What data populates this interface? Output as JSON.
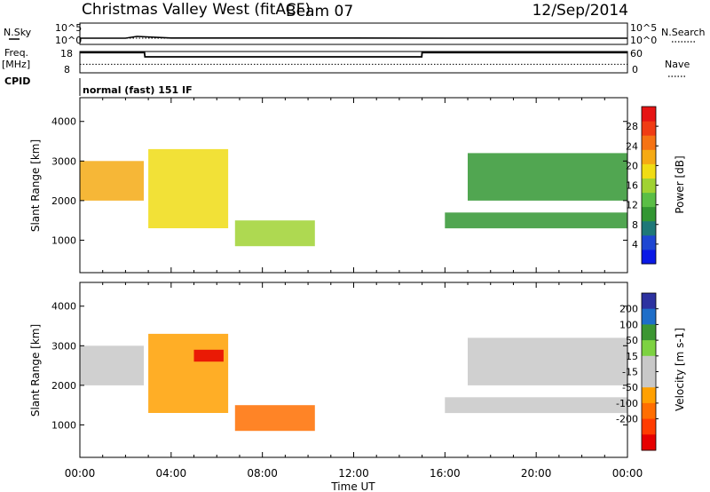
{
  "header": {
    "title": "Christmas Valley West (fitACF)",
    "beam": "Beam 07",
    "date": "12/Sep/2014"
  },
  "side_labels": {
    "nsky": "N.Sky",
    "freq_line1": "Freq.",
    "freq_line2": "[MHz]",
    "cpid": "CPID",
    "nsearch": "N.Search",
    "nave": "Nave"
  },
  "mode_label": "normal (fast) 151 IF",
  "colors": {
    "axis": "#000000",
    "power_scale": [
      "#0a19e6",
      "#1e46d2",
      "#1e7878",
      "#329632",
      "#5abe46",
      "#a0d232",
      "#f0dc14",
      "#f5aa14",
      "#f57314",
      "#f03c14",
      "#e61414"
    ],
    "velocity_scale": [
      "#2d32a0",
      "#1e6ec8",
      "#3c9632",
      "#7dd241",
      "#c8c8c8",
      "#c8c8c8",
      "#ffa000",
      "#ff6e00",
      "#ff3c00",
      "#e60000"
    ]
  },
  "chart_data": [
    {
      "type": "line",
      "name": "noise",
      "series": [
        {
          "name": "N.Sky",
          "x": [
            "00:00",
            "02:00",
            "02:30",
            "04:00",
            "08:00",
            "12:00",
            "16:00",
            "20:00",
            "24:00"
          ],
          "values": [
            0.5,
            0.5,
            1.5,
            0.6,
            0.6,
            0.6,
            0.5,
            0.5,
            0.5
          ]
        },
        {
          "name": "N.Search",
          "x": [
            "00:00",
            "24:00"
          ],
          "values": [
            0.5,
            0.5
          ]
        }
      ],
      "ylim": [
        "10^0",
        "10^5"
      ],
      "tick_labels_left": [
        "10^5",
        "10^0"
      ],
      "tick_labels_right": [
        "10^5",
        "10^0"
      ]
    },
    {
      "type": "line",
      "name": "frequency",
      "series": [
        {
          "name": "Freq.",
          "x": [
            "00:00",
            "02:50",
            "02:51",
            "14:59",
            "15:00",
            "24:00"
          ],
          "values": [
            17.5,
            17.5,
            15.5,
            15.5,
            17.5,
            17.5
          ]
        },
        {
          "name": "Nave",
          "x": [
            "00:00",
            "24:00"
          ],
          "values": [
            24,
            24
          ]
        }
      ],
      "yleft_ticks": [
        "18",
        "8"
      ],
      "yright_ticks": [
        "60",
        "0"
      ]
    },
    {
      "type": "heatmap",
      "name": "power",
      "xlabel": "",
      "ylabel": "Slant Range [km]",
      "x_ticks": [
        "00:00",
        "04:00",
        "08:00",
        "12:00",
        "16:00",
        "20:00",
        "00:00"
      ],
      "y_ticks": [
        1000,
        2000,
        3000,
        4000
      ],
      "ylim": [
        180,
        4600
      ],
      "colorbar": {
        "label": "Power [dB]",
        "ticks": [
          4,
          8,
          12,
          16,
          20,
          24,
          28
        ]
      },
      "regions": [
        {
          "t0": 0.0,
          "t1": 2.8,
          "r0": 2000,
          "r1": 3000,
          "value": 22
        },
        {
          "t0": 3.0,
          "t1": 6.5,
          "r0": 1300,
          "r1": 3300,
          "value": 18
        },
        {
          "t0": 6.8,
          "t1": 10.3,
          "r0": 850,
          "r1": 1500,
          "value": 14
        },
        {
          "t0": 16.0,
          "t1": 24.0,
          "r0": 1300,
          "r1": 1700,
          "value": 8
        },
        {
          "t0": 17.0,
          "t1": 24.0,
          "r0": 2000,
          "r1": 3200,
          "value": 10
        }
      ]
    },
    {
      "type": "heatmap",
      "name": "velocity",
      "xlabel": "Time UT",
      "ylabel": "Slant Range [km]",
      "x_ticks": [
        "00:00",
        "04:00",
        "08:00",
        "12:00",
        "16:00",
        "20:00",
        "00:00"
      ],
      "y_ticks": [
        1000,
        2000,
        3000,
        4000
      ],
      "ylim": [
        180,
        4600
      ],
      "colorbar": {
        "label": "Velocity [m s-1]",
        "ticks": [
          "200",
          "100",
          "50",
          "15",
          "-15",
          "-50",
          "-100",
          "-200"
        ]
      },
      "regions": [
        {
          "t0": 0.0,
          "t1": 2.8,
          "r0": 2000,
          "r1": 3000,
          "value": 0
        },
        {
          "t0": 3.0,
          "t1": 6.5,
          "r0": 1300,
          "r1": 3300,
          "value": -50
        },
        {
          "t0": 5.0,
          "t1": 6.3,
          "r0": 2600,
          "r1": 2900,
          "value": -200
        },
        {
          "t0": 6.8,
          "t1": 10.3,
          "r0": 850,
          "r1": 1500,
          "value": -60
        },
        {
          "t0": 16.0,
          "t1": 24.0,
          "r0": 1300,
          "r1": 1700,
          "value": 0
        },
        {
          "t0": 17.0,
          "t1": 24.0,
          "r0": 2000,
          "r1": 3200,
          "value": 0
        }
      ]
    }
  ]
}
